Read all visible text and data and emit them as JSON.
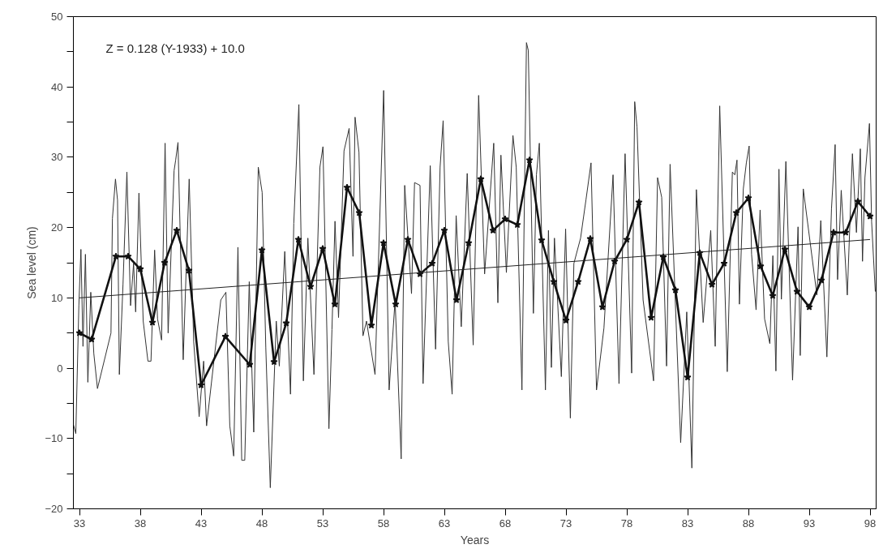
{
  "chart_data": {
    "type": "line",
    "xlabel": "Years",
    "ylabel": "Sea level (cm)",
    "annotations": [
      "Z = 0.128 (Y-1933) + 10.0"
    ],
    "xlim": [
      32.5,
      98.5
    ],
    "xticks": [
      33,
      38,
      43,
      48,
      53,
      58,
      63,
      68,
      73,
      78,
      83,
      88,
      93,
      98
    ],
    "ylim": [
      -20,
      50
    ],
    "yticks": [
      -20,
      {
        "value": -15,
        "label": null
      },
      -10,
      {
        "value": -5,
        "label": null
      },
      0,
      {
        "value": 5,
        "label": null
      },
      10,
      {
        "value": 15,
        "label": null
      },
      20,
      {
        "value": 25,
        "label": null
      },
      30,
      {
        "value": 35,
        "label": null
      },
      40,
      {
        "value": 45,
        "label": null
      },
      50
    ],
    "grid": false,
    "series": [
      {
        "color": "#333333",
        "marker": "none",
        "x": [
          32.5,
          32.7,
          32.95,
          33.12,
          33.29,
          33.49,
          33.69,
          33.93,
          34.18,
          34.48,
          35.59,
          35.71,
          35.96,
          36.13,
          36.28,
          36.58,
          36.9,
          37.2,
          37.45,
          37.62,
          37.89,
          38.24,
          38.63,
          38.88,
          39.18,
          39.42,
          39.75,
          40.04,
          40.29,
          40.78,
          40.91,
          41.1,
          41.53,
          42.02,
          42.39,
          42.84,
          43.21,
          43.45,
          44.62,
          45.04,
          45.36,
          45.68,
          46.03,
          46.34,
          46.59,
          46.96,
          47.33,
          47.7,
          48.02,
          48.32,
          48.69,
          49.18,
          49.43,
          49.88,
          50.35,
          50.62,
          51.04,
          51.41,
          51.78,
          52.28,
          52.77,
          53.02,
          53.51,
          53.76,
          54.01,
          54.3,
          54.75,
          55.17,
          55.49,
          55.66,
          55.98,
          56.31,
          56.6,
          57.3,
          58.01,
          58.46,
          58.95,
          59.45,
          59.74,
          60.3,
          60.55,
          61.0,
          61.25,
          61.84,
          62.28,
          62.65,
          62.9,
          63.32,
          63.64,
          63.97,
          64.39,
          64.88,
          65.37,
          65.82,
          66.31,
          67.06,
          67.4,
          67.65,
          68.1,
          68.64,
          68.91,
          69.38,
          69.75,
          69.9,
          70.32,
          70.57,
          70.81,
          71.31,
          71.56,
          71.8,
          72.05,
          72.62,
          72.97,
          73.36,
          73.65,
          74.2,
          74.64,
          75.06,
          75.51,
          76.12,
          76.87,
          77.36,
          77.86,
          78.4,
          78.65,
          78.84,
          79.34,
          80.2,
          80.53,
          80.87,
          81.27,
          81.56,
          82.43,
          82.93,
          83.35,
          83.72,
          84.28,
          84.9,
          85.27,
          85.64,
          86.26,
          86.68,
          86.88,
          87.06,
          87.26,
          87.58,
          87.83,
          88.06,
          88.26,
          88.63,
          88.96,
          89.33,
          89.76,
          90.01,
          90.26,
          90.51,
          90.71,
          91.08,
          91.63,
          92.08,
          92.26,
          92.51,
          93.63,
          93.95,
          94.45,
          94.83,
          95.13,
          95.33,
          95.63,
          96.13,
          96.55,
          96.88,
          97.2,
          97.38,
          97.58,
          97.95,
          98.13,
          98.43
        ],
        "values": [
          -8.0,
          -9.3,
          8.9,
          16.9,
          3.1,
          16.2,
          -2.0,
          10.8,
          2.1,
          -2.9,
          5.0,
          21.3,
          26.9,
          23.9,
          -0.9,
          11.9,
          27.9,
          8.9,
          14.9,
          8.0,
          24.9,
          6.7,
          1.0,
          1.0,
          16.8,
          7.0,
          4.0,
          32.0,
          5.0,
          28.1,
          29.6,
          32.1,
          1.2,
          26.9,
          3.8,
          -6.9,
          1.0,
          -8.2,
          9.7,
          10.8,
          -8.2,
          -12.5,
          17.2,
          -13.1,
          -13.1,
          12.3,
          -9.1,
          28.6,
          25.0,
          2.9,
          -17.0,
          6.7,
          0.3,
          16.6,
          -3.7,
          20.6,
          37.5,
          -1.8,
          18.5,
          -0.9,
          28.6,
          31.5,
          -8.6,
          5.5,
          20.9,
          7.2,
          30.9,
          34.1,
          15.9,
          35.7,
          30.7,
          4.6,
          6.7,
          -0.9,
          39.5,
          -3.1,
          9.7,
          -12.9,
          26.0,
          10.6,
          26.4,
          26.0,
          -2.2,
          28.8,
          2.7,
          28.6,
          35.2,
          3.8,
          -3.7,
          21.7,
          5.9,
          27.7,
          3.3,
          38.8,
          13.4,
          32.0,
          9.3,
          30.3,
          13.6,
          33.1,
          28.6,
          -3.1,
          46.3,
          45.2,
          7.8,
          27.5,
          32.0,
          -3.1,
          19.6,
          0.1,
          18.5,
          -1.2,
          19.8,
          -7.1,
          14.9,
          18.5,
          23.9,
          29.2,
          -3.1,
          5.7,
          27.5,
          -2.2,
          30.5,
          -0.7,
          37.9,
          34.3,
          9.7,
          -1.8,
          27.1,
          24.3,
          0.3,
          29.0,
          -10.6,
          8.0,
          -14.2,
          25.4,
          6.5,
          19.6,
          3.1,
          37.3,
          -0.5,
          27.9,
          27.5,
          29.6,
          9.1,
          25.5,
          29.2,
          31.6,
          16.2,
          8.3,
          22.5,
          7.0,
          3.5,
          16.0,
          -0.4,
          28.3,
          9.8,
          29.4,
          -1.7,
          20.1,
          1.8,
          25.5,
          10.4,
          21.0,
          1.6,
          22.7,
          31.8,
          12.6,
          25.3,
          10.4,
          30.5,
          19.3,
          31.2,
          15.2,
          27.1,
          34.8,
          20.8,
          10.9
        ]
      },
      {
        "color": "#111111",
        "marker": "star",
        "x": [
          33,
          34,
          36,
          37,
          38,
          39,
          40,
          41,
          42,
          43,
          45,
          47,
          48,
          49,
          50,
          51,
          52,
          53,
          54,
          55,
          56,
          57,
          58,
          59,
          60,
          61,
          62,
          63,
          64,
          65,
          66,
          67,
          68,
          69,
          70,
          71,
          72,
          73,
          74,
          75,
          76,
          77,
          78,
          79,
          80,
          81,
          82,
          83,
          84,
          85,
          86,
          87,
          88,
          89,
          90,
          91,
          92,
          93,
          94,
          95,
          96,
          97,
          98
        ],
        "values": [
          5.0,
          4.1,
          15.9,
          15.9,
          14.1,
          6.5,
          15.0,
          19.6,
          13.9,
          -2.4,
          4.5,
          0.5,
          16.8,
          0.9,
          6.4,
          18.3,
          11.6,
          17.0,
          9.1,
          25.7,
          22.1,
          6.1,
          17.8,
          9.1,
          18.3,
          13.4,
          14.9,
          19.6,
          9.7,
          17.8,
          26.9,
          19.6,
          21.2,
          20.4,
          29.6,
          18.2,
          12.3,
          6.8,
          12.3,
          18.4,
          8.7,
          15.2,
          18.3,
          23.6,
          7.2,
          15.8,
          11.1,
          -1.3,
          16.4,
          11.9,
          14.9,
          22.1,
          24.2,
          14.5,
          10.3,
          16.9,
          10.9,
          8.7,
          12.5,
          19.3,
          19.3,
          23.7,
          21.6
        ]
      },
      {
        "color": "#222222",
        "marker": "none",
        "x": [
          33,
          98
        ],
        "values": [
          10.0,
          18.3
        ]
      }
    ]
  }
}
